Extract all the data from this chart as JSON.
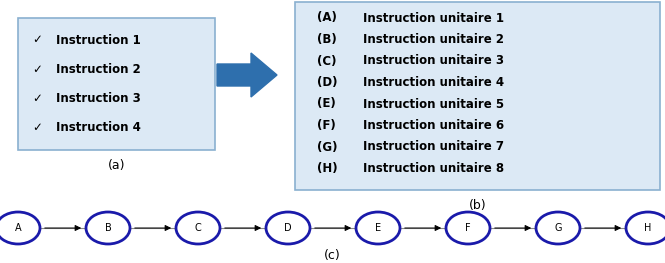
{
  "box_a_instructions": [
    "Instruction 1",
    "Instruction 2",
    "Instruction 3",
    "Instruction 4"
  ],
  "box_b_instructions": [
    [
      "(A)",
      "Instruction unitaire 1"
    ],
    [
      "(B)",
      "Instruction unitaire 2"
    ],
    [
      "(C)",
      "Instruction unitaire 3"
    ],
    [
      "(D)",
      "Instruction unitaire 4"
    ],
    [
      "(E)",
      "Instruction unitaire 5"
    ],
    [
      "(F)",
      "Instruction unitaire 6"
    ],
    [
      "(G)",
      "Instruction unitaire 7"
    ],
    [
      "(H)",
      "Instruction unitaire 8"
    ]
  ],
  "graph_nodes": [
    "A",
    "B",
    "C",
    "D",
    "E",
    "F",
    "G",
    "H"
  ],
  "box_a_color": "#dce9f5",
  "box_b_color": "#dce9f5",
  "box_border_color": "#8ab0d0",
  "node_face_color": "white",
  "node_edge_color": "#1a1aaa",
  "node_text_color": "black",
  "big_arrow_color": "#2e6fad",
  "label_a": "(a)",
  "label_b": "(b)",
  "label_c": "(c)",
  "line_color": "#888888"
}
